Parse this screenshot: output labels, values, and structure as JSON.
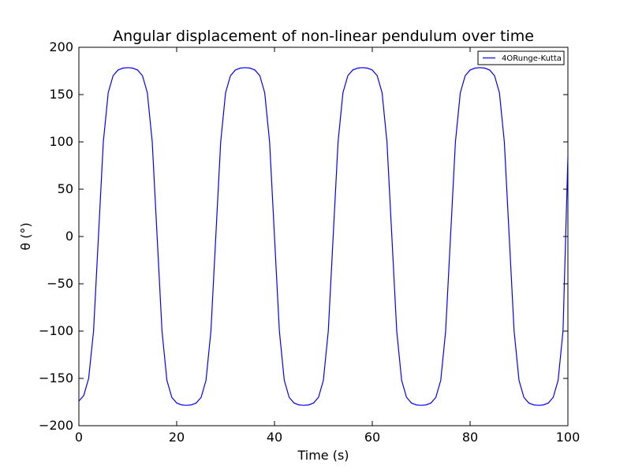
{
  "chart_data": {
    "type": "line",
    "title": "Angular displacement of non-linear pendulum over time",
    "xlabel": "Time (s)",
    "ylabel": "θ (°)",
    "xlim": [
      0,
      100
    ],
    "ylim": [
      -200,
      200
    ],
    "x_ticks": [
      0,
      20,
      40,
      60,
      80,
      100
    ],
    "y_ticks": [
      -200,
      -150,
      -100,
      -50,
      0,
      50,
      100,
      150,
      200
    ],
    "x_tick_labels": [
      "0",
      "20",
      "40",
      "60",
      "80",
      "100"
    ],
    "y_tick_labels": [
      "−200",
      "−150",
      "−100",
      "−50",
      "0",
      "50",
      "100",
      "150",
      "200"
    ],
    "grid": false,
    "legend_position": "upper-right",
    "series": [
      {
        "name": "4ORunge-Kutta",
        "color": "#0000ff",
        "points": [
          [
            0,
            -174
          ],
          [
            1,
            -168
          ],
          [
            2,
            -150
          ],
          [
            3,
            -100
          ],
          [
            4,
            0
          ],
          [
            5,
            100
          ],
          [
            6,
            152
          ],
          [
            7,
            170
          ],
          [
            8,
            176
          ],
          [
            9,
            178
          ],
          [
            10,
            178.5
          ],
          [
            11,
            178
          ],
          [
            12,
            176
          ],
          [
            13,
            170
          ],
          [
            14,
            152
          ],
          [
            15,
            100
          ],
          [
            16,
            0
          ],
          [
            17,
            -100
          ],
          [
            18,
            -152
          ],
          [
            19,
            -170
          ],
          [
            20,
            -176
          ],
          [
            21,
            -178
          ],
          [
            22,
            -178.5
          ],
          [
            23,
            -178
          ],
          [
            24,
            -176
          ],
          [
            25,
            -170
          ],
          [
            26,
            -152
          ],
          [
            27,
            -100
          ],
          [
            28,
            0
          ],
          [
            29,
            100
          ],
          [
            30,
            152
          ],
          [
            31,
            170
          ],
          [
            32,
            176
          ],
          [
            33,
            178
          ],
          [
            34,
            178.5
          ],
          [
            35,
            178
          ],
          [
            36,
            176
          ],
          [
            37,
            170
          ],
          [
            38,
            152
          ],
          [
            39,
            100
          ],
          [
            40,
            0
          ],
          [
            41,
            -100
          ],
          [
            42,
            -152
          ],
          [
            43,
            -170
          ],
          [
            44,
            -176
          ],
          [
            45,
            -178
          ],
          [
            46,
            -178.5
          ],
          [
            47,
            -178
          ],
          [
            48,
            -176
          ],
          [
            49,
            -170
          ],
          [
            50,
            -152
          ],
          [
            51,
            -100
          ],
          [
            52,
            0
          ],
          [
            53,
            100
          ],
          [
            54,
            152
          ],
          [
            55,
            170
          ],
          [
            56,
            176
          ],
          [
            57,
            178
          ],
          [
            58,
            178.5
          ],
          [
            59,
            178
          ],
          [
            60,
            176
          ],
          [
            61,
            170
          ],
          [
            62,
            152
          ],
          [
            63,
            100
          ],
          [
            64,
            0
          ],
          [
            65,
            -100
          ],
          [
            66,
            -152
          ],
          [
            67,
            -170
          ],
          [
            68,
            -176
          ],
          [
            69,
            -178
          ],
          [
            70,
            -178.5
          ],
          [
            71,
            -178
          ],
          [
            72,
            -176
          ],
          [
            73,
            -170
          ],
          [
            74,
            -152
          ],
          [
            75,
            -100
          ],
          [
            76,
            0
          ],
          [
            77,
            100
          ],
          [
            78,
            152
          ],
          [
            79,
            170
          ],
          [
            80,
            176
          ],
          [
            81,
            178
          ],
          [
            82,
            178.5
          ],
          [
            83,
            178
          ],
          [
            84,
            176
          ],
          [
            85,
            170
          ],
          [
            86,
            152
          ],
          [
            87,
            100
          ],
          [
            88,
            0
          ],
          [
            89,
            -100
          ],
          [
            90,
            -152
          ],
          [
            91,
            -170
          ],
          [
            92,
            -176
          ],
          [
            93,
            -178
          ],
          [
            94,
            -178.5
          ],
          [
            95,
            -178
          ],
          [
            96,
            -176
          ],
          [
            97,
            -170
          ],
          [
            98,
            -152
          ],
          [
            99,
            -100
          ],
          [
            100,
            84
          ]
        ]
      }
    ]
  }
}
